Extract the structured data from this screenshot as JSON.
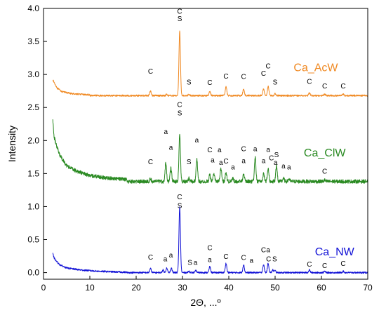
{
  "chart_data": {
    "type": "line",
    "xlabel": "2Θ, ...º",
    "ylabel": "Intensity",
    "xlim": [
      0,
      70
    ],
    "ylim": [
      -0.1,
      4.0
    ],
    "x_ticks": [
      0,
      10,
      20,
      30,
      40,
      50,
      60,
      70
    ],
    "y_ticks": [
      0.0,
      0.5,
      1.0,
      1.5,
      2.0,
      2.5,
      3.0,
      3.5,
      4.0
    ],
    "x_tick_labels": [
      "0",
      "10",
      "20",
      "30",
      "40",
      "50",
      "60",
      "70"
    ],
    "y_tick_labels": [
      "0.0",
      "0.5",
      "1.0",
      "1.5",
      "2.0",
      "2.5",
      "3.0",
      "3.5",
      "4.0"
    ],
    "series": [
      {
        "name": "Ca_AcW",
        "color": "#f08a24",
        "baseline": 2.68,
        "start": [
          [
            2.0,
            2.92
          ],
          [
            2.5,
            2.85
          ],
          [
            3.0,
            2.79
          ],
          [
            4.0,
            2.74
          ],
          [
            6.0,
            2.71
          ],
          [
            10.0,
            2.69
          ]
        ],
        "noise": 0.012,
        "peaks": [
          [
            23.1,
            0.07
          ],
          [
            26.6,
            0.02
          ],
          [
            29.4,
            0.97
          ],
          [
            31.4,
            0.02
          ],
          [
            35.9,
            0.06
          ],
          [
            39.4,
            0.14
          ],
          [
            43.2,
            0.1
          ],
          [
            47.5,
            0.1
          ],
          [
            48.5,
            0.14
          ],
          [
            50.0,
            0.03
          ],
          [
            57.4,
            0.04
          ],
          [
            60.7,
            0.02
          ],
          [
            64.7,
            0.02
          ]
        ],
        "peak_labels": [
          {
            "x": 23.1,
            "y": 3.01,
            "text": "C"
          },
          {
            "x": 29.4,
            "y": 3.92,
            "text": "C"
          },
          {
            "x": 29.4,
            "y": 3.81,
            "text": "S"
          },
          {
            "x": 31.4,
            "y": 2.85,
            "text": "S"
          },
          {
            "x": 35.9,
            "y": 2.84,
            "text": "C"
          },
          {
            "x": 39.4,
            "y": 2.94,
            "text": "C"
          },
          {
            "x": 43.2,
            "y": 2.93,
            "text": "C"
          },
          {
            "x": 47.5,
            "y": 2.98,
            "text": "C"
          },
          {
            "x": 48.5,
            "y": 3.09,
            "text": "C"
          },
          {
            "x": 50.0,
            "y": 2.85,
            "text": "S"
          },
          {
            "x": 57.4,
            "y": 2.86,
            "text": "C"
          },
          {
            "x": 60.7,
            "y": 2.79,
            "text": "C"
          },
          {
            "x": 64.7,
            "y": 2.79,
            "text": "C"
          }
        ],
        "label_pos": {
          "x": 54.0,
          "y": 3.05
        }
      },
      {
        "name": "Ca_ClW",
        "color": "#2a8a22",
        "baseline": 1.38,
        "start": [
          [
            2.0,
            2.3
          ],
          [
            2.3,
            2.05
          ],
          [
            2.8,
            1.92
          ],
          [
            3.5,
            1.78
          ],
          [
            5.0,
            1.62
          ],
          [
            7.0,
            1.54
          ],
          [
            10.0,
            1.47
          ],
          [
            14.0,
            1.43
          ],
          [
            18.0,
            1.41
          ]
        ],
        "noise": 0.028,
        "peaks": [
          [
            23.1,
            0.04
          ],
          [
            26.4,
            0.28
          ],
          [
            27.5,
            0.2
          ],
          [
            29.4,
            0.72
          ],
          [
            31.4,
            0.05
          ],
          [
            33.1,
            0.33
          ],
          [
            35.9,
            0.1
          ],
          [
            36.8,
            0.12
          ],
          [
            38.3,
            0.2
          ],
          [
            39.4,
            0.14
          ],
          [
            40.9,
            0.05
          ],
          [
            43.2,
            0.12
          ],
          [
            45.7,
            0.36
          ],
          [
            47.5,
            0.12
          ],
          [
            48.5,
            0.2
          ],
          [
            50.3,
            0.24
          ],
          [
            51.8,
            0.05
          ],
          [
            53.0,
            0.04
          ],
          [
            60.7,
            0.02
          ]
        ],
        "peak_labels": [
          {
            "x": 23.1,
            "y": 1.64,
            "text": "C"
          },
          {
            "x": 26.4,
            "y": 2.1,
            "text": "a"
          },
          {
            "x": 27.5,
            "y": 1.86,
            "text": "a"
          },
          {
            "x": 29.4,
            "y": 2.51,
            "text": "C"
          },
          {
            "x": 29.4,
            "y": 2.38,
            "text": "S"
          },
          {
            "x": 31.4,
            "y": 1.64,
            "text": "S"
          },
          {
            "x": 33.1,
            "y": 1.97,
            "text": "a"
          },
          {
            "x": 35.9,
            "y": 1.82,
            "text": "C"
          },
          {
            "x": 38.0,
            "y": 1.82,
            "text": "a"
          },
          {
            "x": 36.5,
            "y": 1.67,
            "text": "a"
          },
          {
            "x": 38.3,
            "y": 1.63,
            "text": "a"
          },
          {
            "x": 39.4,
            "y": 1.65,
            "text": "C"
          },
          {
            "x": 40.9,
            "y": 1.56,
            "text": "a"
          },
          {
            "x": 43.2,
            "y": 1.84,
            "text": "C"
          },
          {
            "x": 43.2,
            "y": 1.66,
            "text": "a"
          },
          {
            "x": 45.7,
            "y": 1.84,
            "text": "a"
          },
          {
            "x": 47.5,
            "y": 1.66,
            "text": "a"
          },
          {
            "x": 48.5,
            "y": 1.83,
            "text": "a"
          },
          {
            "x": 49.2,
            "y": 1.7,
            "text": "C"
          },
          {
            "x": 50.3,
            "y": 1.75,
            "text": "S"
          },
          {
            "x": 50.1,
            "y": 1.63,
            "text": "a"
          },
          {
            "x": 51.8,
            "y": 1.58,
            "text": "a"
          },
          {
            "x": 53.0,
            "y": 1.56,
            "text": "a"
          },
          {
            "x": 60.7,
            "y": 1.5,
            "text": "C"
          }
        ],
        "label_pos": {
          "x": 56.2,
          "y": 1.76
        }
      },
      {
        "name": "Ca_NW",
        "color": "#1212d6",
        "baseline": 0.0,
        "start": [
          [
            2.0,
            0.29
          ],
          [
            2.3,
            0.22
          ],
          [
            2.8,
            0.17
          ],
          [
            3.5,
            0.12
          ],
          [
            5.0,
            0.07
          ],
          [
            8.0,
            0.04
          ],
          [
            12.0,
            0.02
          ],
          [
            18.0,
            0.005
          ]
        ],
        "noise": 0.012,
        "peaks": [
          [
            23.1,
            0.06
          ],
          [
            25.8,
            0.04
          ],
          [
            26.6,
            0.07
          ],
          [
            27.6,
            0.07
          ],
          [
            29.4,
            0.99
          ],
          [
            31.4,
            0.02
          ],
          [
            32.9,
            0.03
          ],
          [
            35.9,
            0.09
          ],
          [
            39.4,
            0.14
          ],
          [
            43.2,
            0.12
          ],
          [
            47.5,
            0.12
          ],
          [
            48.5,
            0.14
          ],
          [
            49.5,
            0.04
          ],
          [
            50.0,
            0.03
          ],
          [
            57.4,
            0.04
          ],
          [
            60.7,
            0.02
          ],
          [
            64.7,
            0.02
          ]
        ],
        "peak_labels": [
          {
            "x": 23.1,
            "y": 0.2,
            "text": "C"
          },
          {
            "x": 26.3,
            "y": 0.17,
            "text": "a"
          },
          {
            "x": 27.5,
            "y": 0.23,
            "text": "a"
          },
          {
            "x": 29.4,
            "y": 1.11,
            "text": "C"
          },
          {
            "x": 29.4,
            "y": 0.98,
            "text": "S"
          },
          {
            "x": 31.6,
            "y": 0.12,
            "text": "S"
          },
          {
            "x": 32.8,
            "y": 0.12,
            "text": "a"
          },
          {
            "x": 35.9,
            "y": 0.34,
            "text": "C"
          },
          {
            "x": 35.9,
            "y": 0.16,
            "text": "a"
          },
          {
            "x": 39.4,
            "y": 0.21,
            "text": "C"
          },
          {
            "x": 43.2,
            "y": 0.19,
            "text": "C"
          },
          {
            "x": 44.9,
            "y": 0.15,
            "text": "a"
          },
          {
            "x": 47.5,
            "y": 0.31,
            "text": "C"
          },
          {
            "x": 48.5,
            "y": 0.31,
            "text": "a"
          },
          {
            "x": 48.6,
            "y": 0.17,
            "text": "C"
          },
          {
            "x": 49.9,
            "y": 0.17,
            "text": "S"
          },
          {
            "x": 57.4,
            "y": 0.09,
            "text": "C"
          },
          {
            "x": 60.7,
            "y": 0.07,
            "text": "C"
          },
          {
            "x": 64.7,
            "y": 0.1,
            "text": "C"
          }
        ],
        "label_pos": {
          "x": 58.6,
          "y": 0.26
        }
      }
    ]
  }
}
